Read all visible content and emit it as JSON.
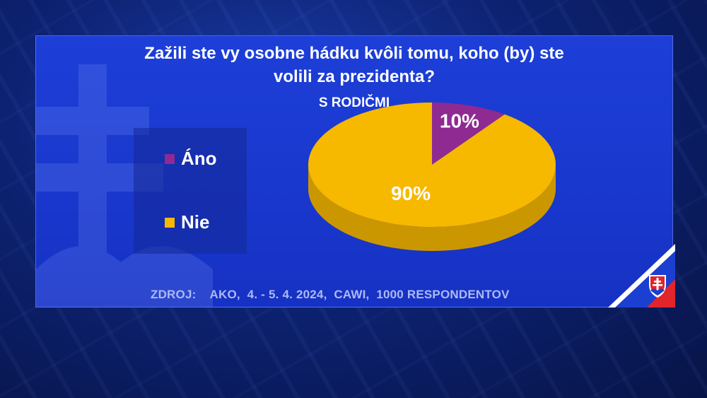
{
  "chart_data": {
    "type": "pie",
    "title": "Zažili ste vy osobne hádku kvôli tomu, koho (by) ste volili za prezidenta?",
    "subtitle": "S RODIČMI",
    "categories": [
      "Áno",
      "Nie"
    ],
    "values": [
      10,
      90
    ],
    "value_labels": [
      "10%",
      "90%"
    ],
    "colors": [
      "#8e2a92",
      "#f7b800"
    ],
    "legend_placement": "left"
  },
  "title_line1": "Zažili ste vy osobne hádku kvôli tomu, koho (by) ste",
  "title_line2": "volili za prezidenta?",
  "subtitle": "S RODIČMI",
  "legend": [
    {
      "label": "Áno",
      "color": "#8e2a92"
    },
    {
      "label": "Nie",
      "color": "#f7b800"
    }
  ],
  "source": "ZDROJ:    AKO,  4. - 5. 4. 2024,  CAWI,  1000 RESPONDENTOV",
  "colors": {
    "background": "#0d2272",
    "panel": "#1a38d0",
    "source_text": "#aeb9f2"
  },
  "icons": [
    "slovak-coat-of-arms-icon"
  ]
}
